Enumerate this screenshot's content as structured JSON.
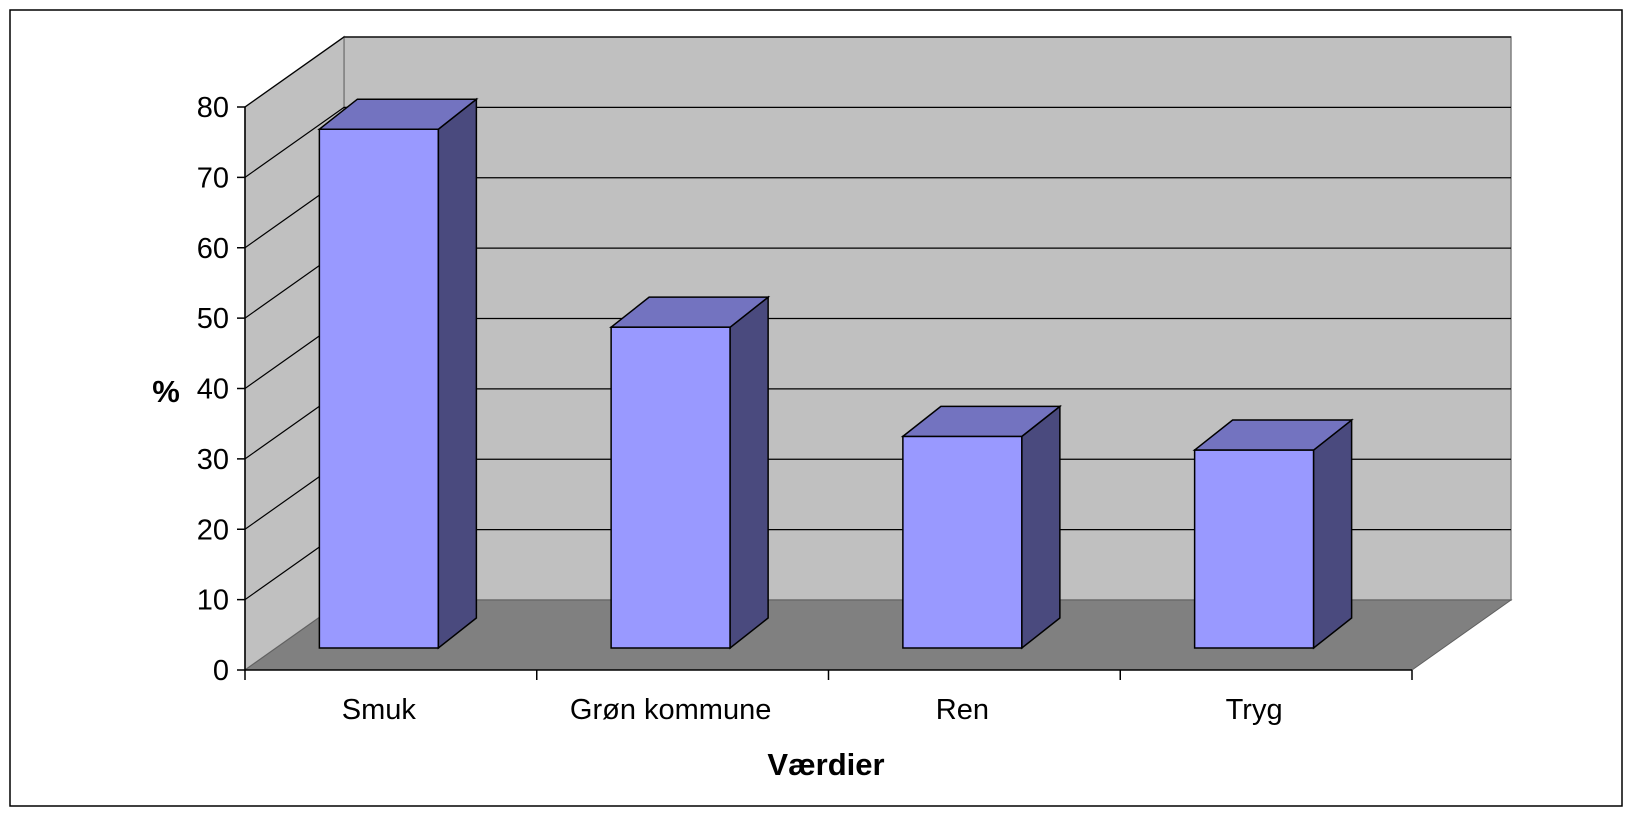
{
  "chart_data": {
    "type": "bar",
    "style": "3d-column",
    "categories": [
      "Smuk",
      "Grøn kommune",
      "Ren",
      "Tryg"
    ],
    "values": [
      76,
      47,
      31,
      29
    ],
    "ylim": [
      0,
      80
    ],
    "ytick_step": 10,
    "yticks": [
      "0",
      "10",
      "20",
      "30",
      "40",
      "50",
      "60",
      "70",
      "80"
    ],
    "title": "",
    "xlabel": "Værdier",
    "ylabel": "%",
    "grid": true,
    "legend": "none",
    "colors": {
      "bar_front": "#9999ff",
      "bar_top": "#7373c0",
      "bar_side": "#4a4a7e",
      "back_wall": "#c0c0c0",
      "side_wall": "#c0c0c0",
      "floor": "#808080"
    }
  }
}
